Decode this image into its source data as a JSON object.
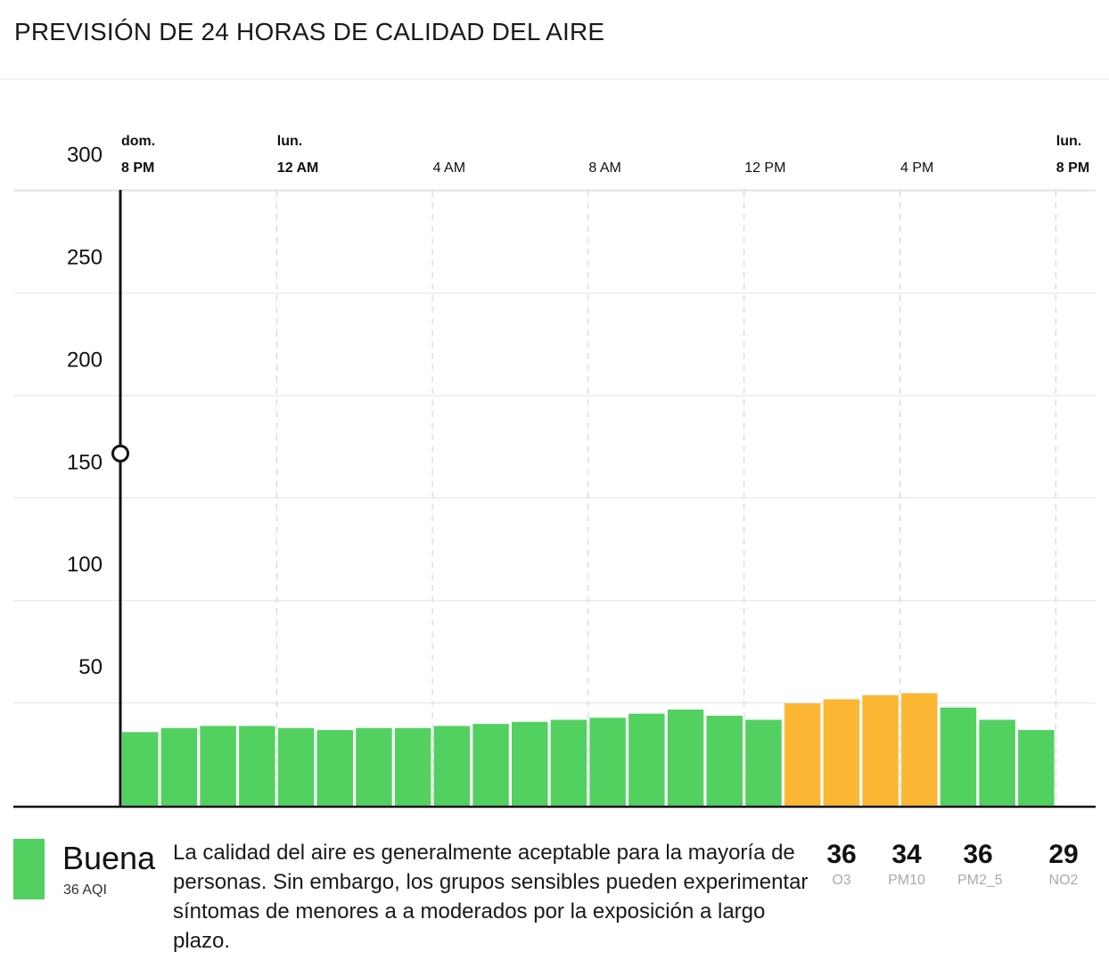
{
  "header": {
    "title": "PREVISIÓN DE 24 HORAS DE CALIDAD DEL AIRE"
  },
  "chart_data": {
    "type": "bar",
    "ylim": [
      0,
      300
    ],
    "y_ticks": [
      50,
      100,
      150,
      200,
      250,
      300
    ],
    "x_ticks": [
      {
        "index": 0,
        "day": "dom.",
        "time": "8 PM",
        "bold": true
      },
      {
        "index": 4,
        "day": "lun.",
        "time": "12 AM",
        "bold": true
      },
      {
        "index": 8,
        "day": "",
        "time": "4 AM",
        "bold": false
      },
      {
        "index": 12,
        "day": "",
        "time": "8 AM",
        "bold": false
      },
      {
        "index": 16,
        "day": "",
        "time": "12 PM",
        "bold": false
      },
      {
        "index": 20,
        "day": "",
        "time": "4 PM",
        "bold": false
      },
      {
        "index": 24,
        "day": "lun.",
        "time": "8 PM",
        "bold": true
      }
    ],
    "values": [
      36,
      38,
      39,
      39,
      38,
      37,
      38,
      38,
      39,
      40,
      41,
      42,
      43,
      45,
      47,
      44,
      42,
      50,
      52,
      54,
      55,
      48,
      42,
      37
    ],
    "colors": [
      "#52d160",
      "#52d160",
      "#52d160",
      "#52d160",
      "#52d160",
      "#52d160",
      "#52d160",
      "#52d160",
      "#52d160",
      "#52d160",
      "#52d160",
      "#52d160",
      "#52d160",
      "#52d160",
      "#52d160",
      "#52d160",
      "#52d160",
      "#fbb733",
      "#fbb733",
      "#fbb733",
      "#fbb733",
      "#52d160",
      "#52d160",
      "#52d160"
    ],
    "current_marker": {
      "index": 0,
      "value": 172
    }
  },
  "summary": {
    "category": "Buena",
    "aqi_label": "36 AQI",
    "color": "#52d160",
    "description": "La calidad del aire es generalmente aceptable para la mayoría de personas. Sin embargo, los grupos sensibles pueden experimentar síntomas de menores a a moderados por la exposición a largo plazo."
  },
  "pollutants": [
    {
      "value": "36",
      "name": "O3"
    },
    {
      "value": "34",
      "name": "PM10"
    },
    {
      "value": "36",
      "name": "PM2_5"
    },
    {
      "value": "29",
      "name": "NO2"
    }
  ]
}
